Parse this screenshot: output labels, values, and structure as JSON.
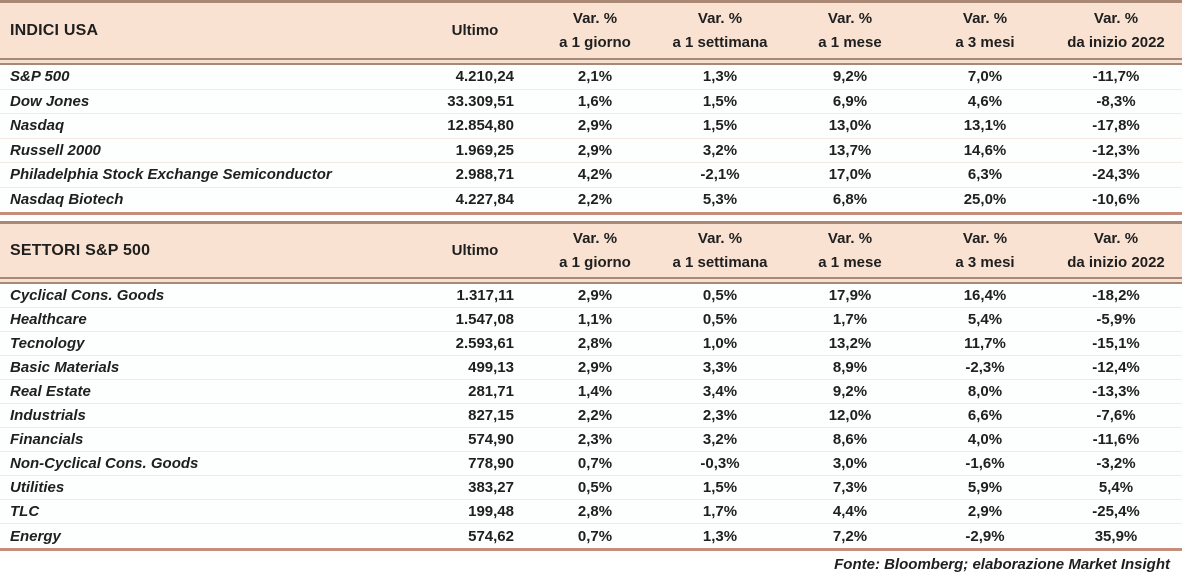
{
  "colors": {
    "header_bg": "#f9e2d1",
    "border_dark": "#a98876",
    "border_salmon": "#c68e7a",
    "text": "#1f1f1f"
  },
  "tables": [
    {
      "title": "INDICI USA",
      "ultimo_header": "Ultimo",
      "columns": [
        {
          "line1": "Var. %",
          "line2": "a 1 giorno"
        },
        {
          "line1": "Var. %",
          "line2": "a 1 settimana"
        },
        {
          "line1": "Var. %",
          "line2": "a 1 mese"
        },
        {
          "line1": "Var. %",
          "line2": "a 3 mesi"
        },
        {
          "line1": "Var. %",
          "line2": "da inizio 2022"
        }
      ],
      "rows": [
        {
          "name": "S&P 500",
          "ultimo": "4.210,24",
          "d1": "2,1%",
          "w1": "1,3%",
          "m1": "9,2%",
          "m3": "7,0%",
          "ytd": "-11,7%"
        },
        {
          "name": "Dow Jones",
          "ultimo": "33.309,51",
          "d1": "1,6%",
          "w1": "1,5%",
          "m1": "6,9%",
          "m3": "4,6%",
          "ytd": "-8,3%"
        },
        {
          "name": "Nasdaq",
          "ultimo": "12.854,80",
          "d1": "2,9%",
          "w1": "1,5%",
          "m1": "13,0%",
          "m3": "13,1%",
          "ytd": "-17,8%"
        },
        {
          "name": "Russell 2000",
          "ultimo": "1.969,25",
          "d1": "2,9%",
          "w1": "3,2%",
          "m1": "13,7%",
          "m3": "14,6%",
          "ytd": "-12,3%"
        },
        {
          "name": "Philadelphia Stock Exchange Semiconductor",
          "ultimo": "2.988,71",
          "d1": "4,2%",
          "w1": "-2,1%",
          "m1": "17,0%",
          "m3": "6,3%",
          "ytd": "-24,3%"
        },
        {
          "name": "Nasdaq Biotech",
          "ultimo": "4.227,84",
          "d1": "2,2%",
          "w1": "5,3%",
          "m1": "6,8%",
          "m3": "25,0%",
          "ytd": "-10,6%"
        }
      ]
    },
    {
      "title": "SETTORI S&P 500",
      "ultimo_header": "Ultimo",
      "columns": [
        {
          "line1": "Var. %",
          "line2": "a 1 giorno"
        },
        {
          "line1": "Var. %",
          "line2": "a 1 settimana"
        },
        {
          "line1": "Var. %",
          "line2": "a 1 mese"
        },
        {
          "line1": "Var. %",
          "line2": "a 3 mesi"
        },
        {
          "line1": "Var. %",
          "line2": "da inizio 2022"
        }
      ],
      "rows": [
        {
          "name": "Cyclical Cons. Goods",
          "ultimo": "1.317,11",
          "d1": "2,9%",
          "w1": "0,5%",
          "m1": "17,9%",
          "m3": "16,4%",
          "ytd": "-18,2%"
        },
        {
          "name": "Healthcare",
          "ultimo": "1.547,08",
          "d1": "1,1%",
          "w1": "0,5%",
          "m1": "1,7%",
          "m3": "5,4%",
          "ytd": "-5,9%"
        },
        {
          "name": "Tecnology",
          "ultimo": "2.593,61",
          "d1": "2,8%",
          "w1": "1,0%",
          "m1": "13,2%",
          "m3": "11,7%",
          "ytd": "-15,1%"
        },
        {
          "name": "Basic Materials",
          "ultimo": "499,13",
          "d1": "2,9%",
          "w1": "3,3%",
          "m1": "8,9%",
          "m3": "-2,3%",
          "ytd": "-12,4%"
        },
        {
          "name": "Real Estate",
          "ultimo": "281,71",
          "d1": "1,4%",
          "w1": "3,4%",
          "m1": "9,2%",
          "m3": "8,0%",
          "ytd": "-13,3%"
        },
        {
          "name": "Industrials",
          "ultimo": "827,15",
          "d1": "2,2%",
          "w1": "2,3%",
          "m1": "12,0%",
          "m3": "6,6%",
          "ytd": "-7,6%"
        },
        {
          "name": "Financials",
          "ultimo": "574,90",
          "d1": "2,3%",
          "w1": "3,2%",
          "m1": "8,6%",
          "m3": "4,0%",
          "ytd": "-11,6%"
        },
        {
          "name": "Non-Cyclical Cons. Goods",
          "ultimo": "778,90",
          "d1": "0,7%",
          "w1": "-0,3%",
          "m1": "3,0%",
          "m3": "-1,6%",
          "ytd": "-3,2%"
        },
        {
          "name": "Utilities",
          "ultimo": "383,27",
          "d1": "0,5%",
          "w1": "1,5%",
          "m1": "7,3%",
          "m3": "5,9%",
          "ytd": "5,4%"
        },
        {
          "name": "TLC",
          "ultimo": "199,48",
          "d1": "2,8%",
          "w1": "1,7%",
          "m1": "4,4%",
          "m3": "2,9%",
          "ytd": "-25,4%"
        },
        {
          "name": "Energy",
          "ultimo": "574,62",
          "d1": "0,7%",
          "w1": "1,3%",
          "m1": "7,2%",
          "m3": "-2,9%",
          "ytd": "35,9%"
        }
      ]
    }
  ],
  "footer": {
    "source": "Fonte: Bloomberg; elaborazione Market Insight"
  }
}
